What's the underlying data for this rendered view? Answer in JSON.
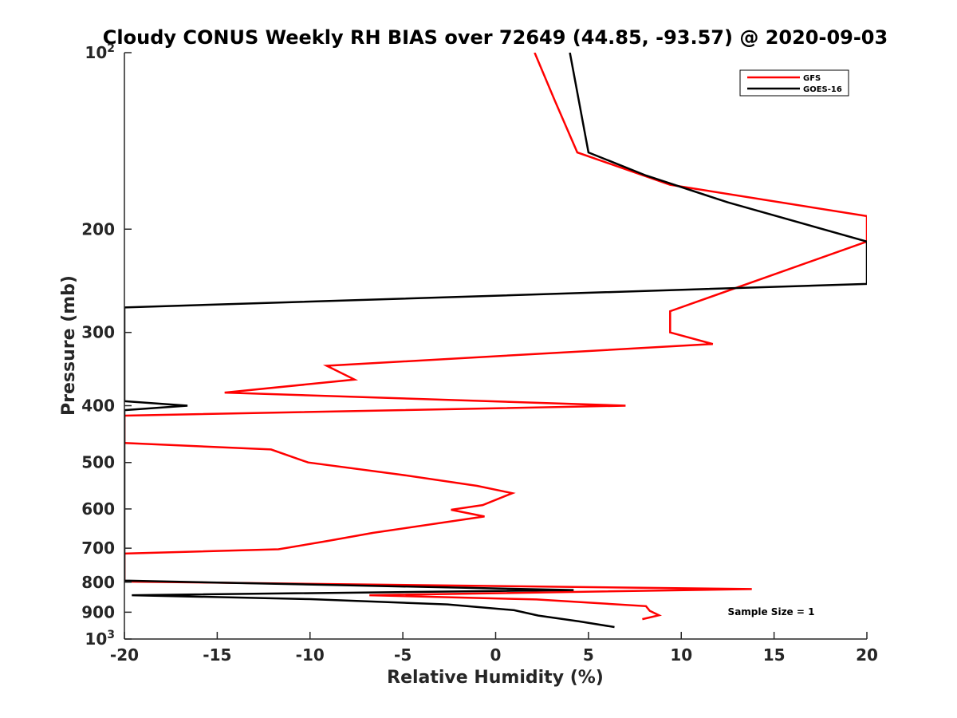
{
  "chart_data": {
    "type": "line",
    "title": "Cloudy CONUS Weekly RH BIAS over 72649 (44.85, -93.57) @ 2020-09-03",
    "xlabel": "Relative Humidity (%)",
    "ylabel": "Pressure (mb)",
    "xlim": [
      -20,
      20
    ],
    "ylim": [
      100,
      1000
    ],
    "y_scale": "log",
    "y_reversed": true,
    "grid": false,
    "legend_position": "top-right",
    "x_ticks": [
      "-20",
      "-15",
      "-10",
      "-5",
      "0",
      "5",
      "10",
      "15",
      "20"
    ],
    "y_ticks": [
      {
        "value": 100,
        "label": "10",
        "sup": "2"
      },
      {
        "value": 200,
        "label": "200",
        "sup": ""
      },
      {
        "value": 300,
        "label": "300",
        "sup": ""
      },
      {
        "value": 400,
        "label": "400",
        "sup": ""
      },
      {
        "value": 500,
        "label": "500",
        "sup": ""
      },
      {
        "value": 600,
        "label": "600",
        "sup": ""
      },
      {
        "value": 700,
        "label": "700",
        "sup": ""
      },
      {
        "value": 800,
        "label": "800",
        "sup": ""
      },
      {
        "value": 900,
        "label": "900",
        "sup": ""
      },
      {
        "value": 1000,
        "label": "10",
        "sup": "3"
      }
    ],
    "annotation": "Sample Size = 1",
    "series": [
      {
        "name": "GFS",
        "color": "#ff0000",
        "x": [
          2.1,
          3.2,
          4.4,
          9.4,
          20.0,
          20.0,
          9.4,
          9.4,
          11.7,
          -9.1,
          -7.6,
          -14.6,
          7.0,
          -20.0,
          -20.0,
          -12.1,
          -10.1,
          -5.2,
          -1.0,
          0.9,
          -0.7,
          -2.4,
          -0.6,
          -6.6,
          -9.0,
          -11.7,
          -20.0,
          -20.0,
          13.8,
          -6.8,
          2.2,
          8.1,
          8.3,
          8.8,
          7.9
        ],
        "y": [
          100,
          121,
          148,
          168,
          190,
          210,
          276,
          300,
          314,
          342,
          361,
          380,
          400,
          416,
          463,
          475,
          500,
          524,
          548,
          564,
          591,
          602,
          618,
          659,
          680,
          703,
          715,
          798,
          822,
          842,
          856,
          879,
          895,
          911,
          925
        ]
      },
      {
        "name": "GOES-16",
        "color": "#000000",
        "x": [
          4.0,
          5.0,
          8.1,
          12.5,
          20.0,
          20.0,
          -20.0,
          -20.0,
          -20.0,
          -16.6,
          -20.0,
          -20.0,
          4.2,
          -19.6,
          -10.0,
          -2.6,
          1.0,
          2.3,
          4.5,
          6.4
        ],
        "y": [
          100,
          148,
          162,
          180,
          210,
          248,
          272,
          388,
          393,
          400,
          407,
          795,
          825,
          842,
          855,
          873,
          893,
          912,
          933,
          954
        ]
      }
    ]
  }
}
